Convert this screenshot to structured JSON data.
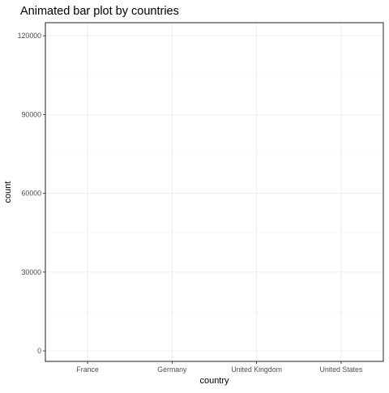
{
  "chart_data": {
    "type": "bar",
    "title": "Animated bar plot by countries",
    "xlabel": "country",
    "ylabel": "count",
    "categories": [
      "France",
      "Germany",
      "United Kingdom",
      "United States"
    ],
    "values": [
      0,
      0,
      0,
      0
    ],
    "ylim": [
      -4000,
      125000
    ],
    "yticks": [
      0,
      30000,
      60000,
      90000,
      120000
    ],
    "ytick_labels": [
      "0",
      "30000",
      "60000",
      "90000",
      "120000"
    ],
    "bar_color": "#ffffff",
    "grid": true,
    "legend": "none"
  }
}
